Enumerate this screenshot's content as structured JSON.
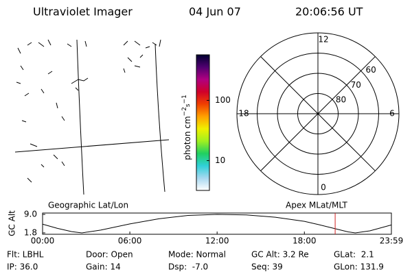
{
  "header": {
    "title": "Ultraviolet Imager",
    "date": "04 Jun 07",
    "time": "20:06:56 UT"
  },
  "colorbar": {
    "label": "photon cm",
    "label_exp1": "−2",
    "label_mid": "s",
    "label_exp2": "−1",
    "scale": "log",
    "clim": [
      3.2,
      570
    ],
    "ticks": [
      10,
      100
    ],
    "colors": [
      "#ffffff",
      "#a8d8f0",
      "#30d0d8",
      "#20d060",
      "#a0f020",
      "#f0f000",
      "#ffa000",
      "#f04000",
      "#d0002a",
      "#b00080",
      "#500070",
      "#000030"
    ]
  },
  "polar": {
    "rlim": [
      90,
      50
    ],
    "lat_ticks": [
      60,
      70,
      80
    ],
    "mlt_ticks": [
      0,
      6,
      12,
      18
    ]
  },
  "timeline": {
    "ylabel": "GC Alt",
    "left_label": "Geographic Lat/Lon",
    "right_label": "Apex MLat/MLT",
    "ylim": [
      1.8,
      9.0
    ],
    "yticks": [
      {
        "value": 9.0,
        "label": "9.0"
      },
      {
        "value": 1.8,
        "label": "1.8"
      }
    ],
    "xlim": [
      0,
      23.983
    ],
    "xticks": [
      {
        "value": 0,
        "label": "00:00"
      },
      {
        "value": 6,
        "label": "06:00"
      },
      {
        "value": 12,
        "label": "12:00"
      },
      {
        "value": 18,
        "label": "18:00"
      },
      {
        "value": 23.983,
        "label": "23:59"
      }
    ],
    "x": [
      0,
      1,
      2,
      2.7,
      4,
      6,
      8,
      10,
      12,
      14,
      16,
      18,
      19,
      20,
      21,
      21.5,
      22.5,
      23.983
    ],
    "values": [
      5.2,
      3.6,
      2.3,
      1.8,
      2.9,
      5.3,
      7.3,
      8.6,
      9.0,
      8.8,
      7.9,
      6.3,
      5.0,
      3.6,
      2.2,
      1.8,
      2.6,
      4.9
    ],
    "marker": 20.116,
    "marker_color": "#d02020"
  },
  "status": {
    "rows": [
      [
        "Flt: LBHL",
        "Door: Open",
        "Mode: Normal",
        "GC Alt: 3.2 Re",
        "GLat:  2.1"
      ],
      [
        "IP: 36.0",
        "Gain: 14",
        "Dsp:  -7.0",
        "Seq: 39",
        "GLon: 131.9"
      ]
    ]
  }
}
